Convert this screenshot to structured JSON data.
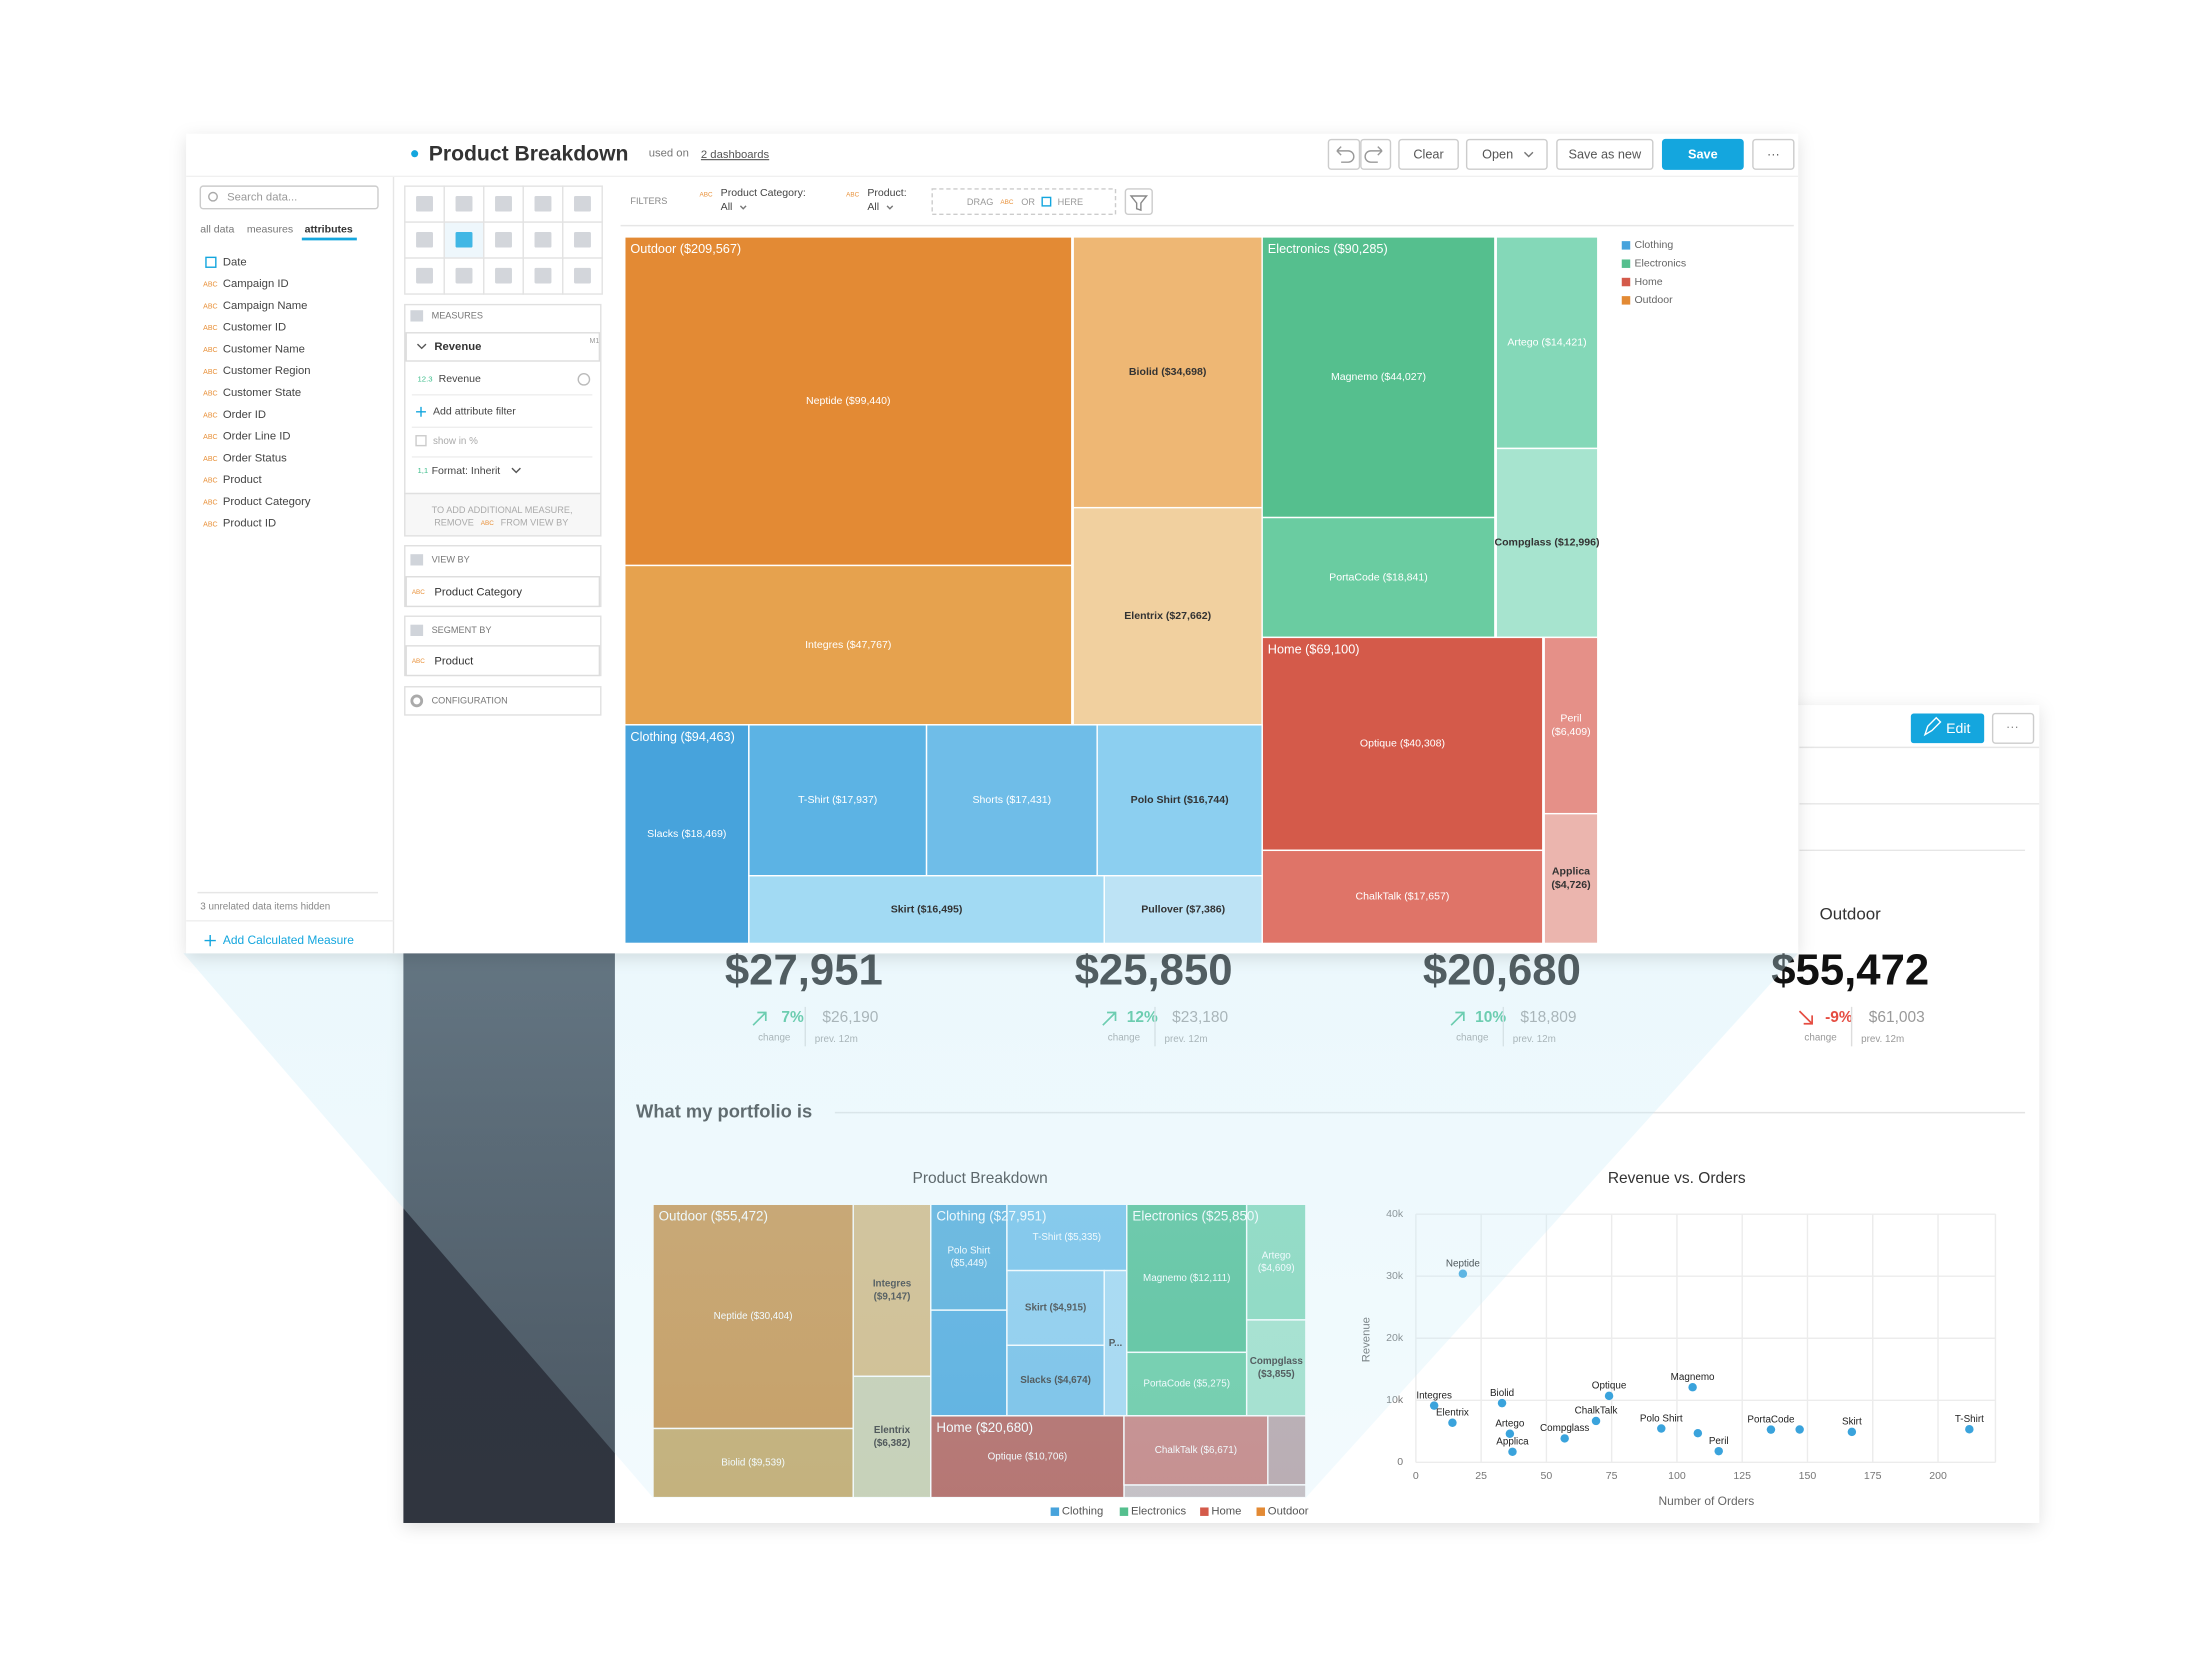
{
  "editor": {
    "header": {
      "title": "Product Breakdown",
      "used_on": "used on",
      "dashboards_link": "2 dashboards"
    },
    "buttons": {
      "clear": "Clear",
      "open": "Open",
      "save_as_new": "Save as new",
      "save": "Save",
      "more": "···"
    },
    "data_panel": {
      "search_placeholder": "Search data...",
      "tabs": [
        "all data",
        "measures",
        "attributes"
      ],
      "attribute_badge": "ABC",
      "items": [
        "Date",
        "Campaign ID",
        "Campaign Name",
        "Customer ID",
        "Customer Name",
        "Customer Region",
        "Customer State",
        "Order ID",
        "Order Line ID",
        "Order Status",
        "Product",
        "Product Category",
        "Product ID"
      ],
      "hidden_note": "3 unrelated data items hidden",
      "add_calculated": "Add Calculated Measure"
    },
    "buckets": {
      "measures_title": "MEASURES",
      "measure": "Revenue",
      "measure_badge": "M1",
      "detail_badge": "12.3",
      "detail": "Revenue",
      "add_filter": "Add attribute filter",
      "show_in_percent": "show in %",
      "format_badge": "1,1",
      "format": "Format: Inherit",
      "hint_line1": "TO ADD ADDITIONAL MEASURE,",
      "hint_remove": "REMOVE",
      "hint_from": "FROM VIEW BY",
      "view_by_title": "VIEW BY",
      "view_by_item": "Product Category",
      "segment_by_title": "SEGMENT BY",
      "segment_by_item": "Product",
      "configuration": "CONFIGURATION"
    },
    "filters": {
      "label": "FILTERS",
      "items": [
        {
          "label": "Product Category:",
          "value": "All"
        },
        {
          "label": "Product:",
          "value": "All"
        }
      ],
      "drag": "DRAG",
      "or": "OR",
      "here": "HERE"
    },
    "treemap": {
      "groups": [
        {
          "label": "Outdoor ($209,567)",
          "nodes": [
            {
              "label": "Neptide ($99,440)"
            },
            {
              "label": "Integres ($47,767)"
            },
            {
              "label": "Biolid ($34,698)"
            },
            {
              "label": "Elentrix ($27,662)"
            }
          ]
        },
        {
          "label": "Electronics ($90,285)",
          "nodes": [
            {
              "label": "Magnemo ($44,027)"
            },
            {
              "label": "PortaCode ($18,841)"
            },
            {
              "label": "Artego ($14,421)"
            },
            {
              "label": "Compglass ($12,996)"
            }
          ]
        },
        {
          "label": "Home ($69,100)",
          "nodes": [
            {
              "label": "Optique ($40,308)"
            },
            {
              "label": "ChalkTalk ($17,657)"
            },
            {
              "label": [
                "Peril",
                "($6,409)"
              ]
            },
            {
              "label": [
                "Applica",
                "($4,726)"
              ]
            }
          ]
        },
        {
          "label": "Clothing ($94,463)",
          "nodes": [
            {
              "label": "Slacks ($18,469)"
            },
            {
              "label": "T-Shirt ($17,937)"
            },
            {
              "label": "Shorts ($17,431)"
            },
            {
              "label": "Polo Shirt ($16,744)"
            },
            {
              "label": "Skirt ($16,495)"
            },
            {
              "label": "Pullover ($7,386)"
            }
          ]
        }
      ]
    },
    "legend": [
      {
        "name": "Clothing",
        "color": "#47a3dc"
      },
      {
        "name": "Electronics",
        "color": "#55bf8e"
      },
      {
        "name": "Home",
        "color": "#d45a4a"
      },
      {
        "name": "Outdoor",
        "color": "#e38a34"
      }
    ]
  },
  "dashboard": {
    "edit": "Edit",
    "more": "···",
    "kpis": [
      {
        "value": "$27,951",
        "change": "7%",
        "trend": "up",
        "previous": "$26,190",
        "change_caption": "change",
        "previous_caption": "prev. 12m"
      },
      {
        "value": "$25,850",
        "change": "12%",
        "trend": "up",
        "previous": "$23,180",
        "change_caption": "change",
        "previous_caption": "prev. 12m"
      },
      {
        "value": "$20,680",
        "change": "10%",
        "trend": "up",
        "previous": "$18,809",
        "change_caption": "change",
        "previous_caption": "prev. 12m"
      },
      {
        "title": "Outdoor",
        "value": "$55,472",
        "change": "-9%",
        "trend": "down",
        "previous": "$61,003",
        "change_caption": "change",
        "previous_caption": "prev. 12m"
      }
    ],
    "section_title": "What my portfolio is",
    "treemap": {
      "title": "Product Breakdown",
      "groups": [
        {
          "label": "Outdoor ($55,472)",
          "nodes": [
            {
              "label": "Neptide ($30,404)"
            },
            {
              "label": "Biolid ($9,539)"
            },
            {
              "label": [
                "Integres",
                "($9,147)"
              ]
            },
            {
              "label": [
                "Elentrix",
                "($6,382)"
              ]
            }
          ]
        },
        {
          "label": "Clothing ($27,951)",
          "nodes": [
            {
              "label": [
                "Polo Shirt",
                "($5,449)"
              ]
            },
            {
              "label": "T-Shirt ($5,335)"
            },
            {
              "label": "Skirt ($4,915)"
            },
            {
              "label": "Slacks ($4,674)"
            },
            {
              "label": "P..."
            }
          ]
        },
        {
          "label": "Electronics ($25,850)",
          "nodes": [
            {
              "label": "Magnemo ($12,111)"
            },
            {
              "label": "PortaCode ($5,275)"
            },
            {
              "label": [
                "Artego",
                "($4,609)"
              ]
            },
            {
              "label": [
                "Compglass",
                "($3,855)"
              ]
            }
          ]
        },
        {
          "label": "Home ($20,680)",
          "nodes": [
            {
              "label": "Optique ($10,706)"
            },
            {
              "label": "ChalkTalk ($6,671)"
            }
          ]
        }
      ]
    },
    "legend": [
      {
        "name": "Clothing",
        "color": "#47a3dc"
      },
      {
        "name": "Electronics",
        "color": "#55bf8e"
      },
      {
        "name": "Home",
        "color": "#d45a4a"
      },
      {
        "name": "Outdoor",
        "color": "#e38a34"
      }
    ],
    "scatter": {
      "type": "scatter",
      "title": "Revenue vs. Orders",
      "x_label": "Number of Orders",
      "y_label": "Revenue",
      "color": "#3aa3dc",
      "grid": true,
      "xlim": [
        0,
        222
      ],
      "xticks": [
        0,
        25,
        50,
        75,
        100,
        125,
        150,
        175,
        200
      ],
      "ylim": [
        0,
        40000
      ],
      "yticks": [
        0,
        {
          "value": 10000,
          "label": "10k"
        },
        {
          "value": 20000,
          "label": "20k"
        },
        {
          "value": 30000,
          "label": "30k"
        },
        {
          "value": 40000,
          "label": "40k"
        }
      ],
      "labels": [
        "Neptide",
        "Integres",
        "Elentrix",
        "Biolid",
        "Artego",
        "Applica",
        "Compglass",
        "ChalkTalk",
        "Optique",
        "Magnemo",
        "Polo Shirt",
        null,
        "Peril",
        "PortaCode",
        null,
        "Skirt",
        "T-Shirt"
      ],
      "x": [
        18,
        7,
        14,
        33,
        36,
        37,
        57,
        69,
        74,
        106,
        94,
        108,
        116,
        136,
        147,
        167,
        212
      ],
      "values": [
        30404,
        9147,
        6382,
        9539,
        4609,
        1700,
        3855,
        6671,
        10706,
        12111,
        5449,
        4700,
        1800,
        5275,
        5300,
        4915,
        5335
      ]
    }
  }
}
